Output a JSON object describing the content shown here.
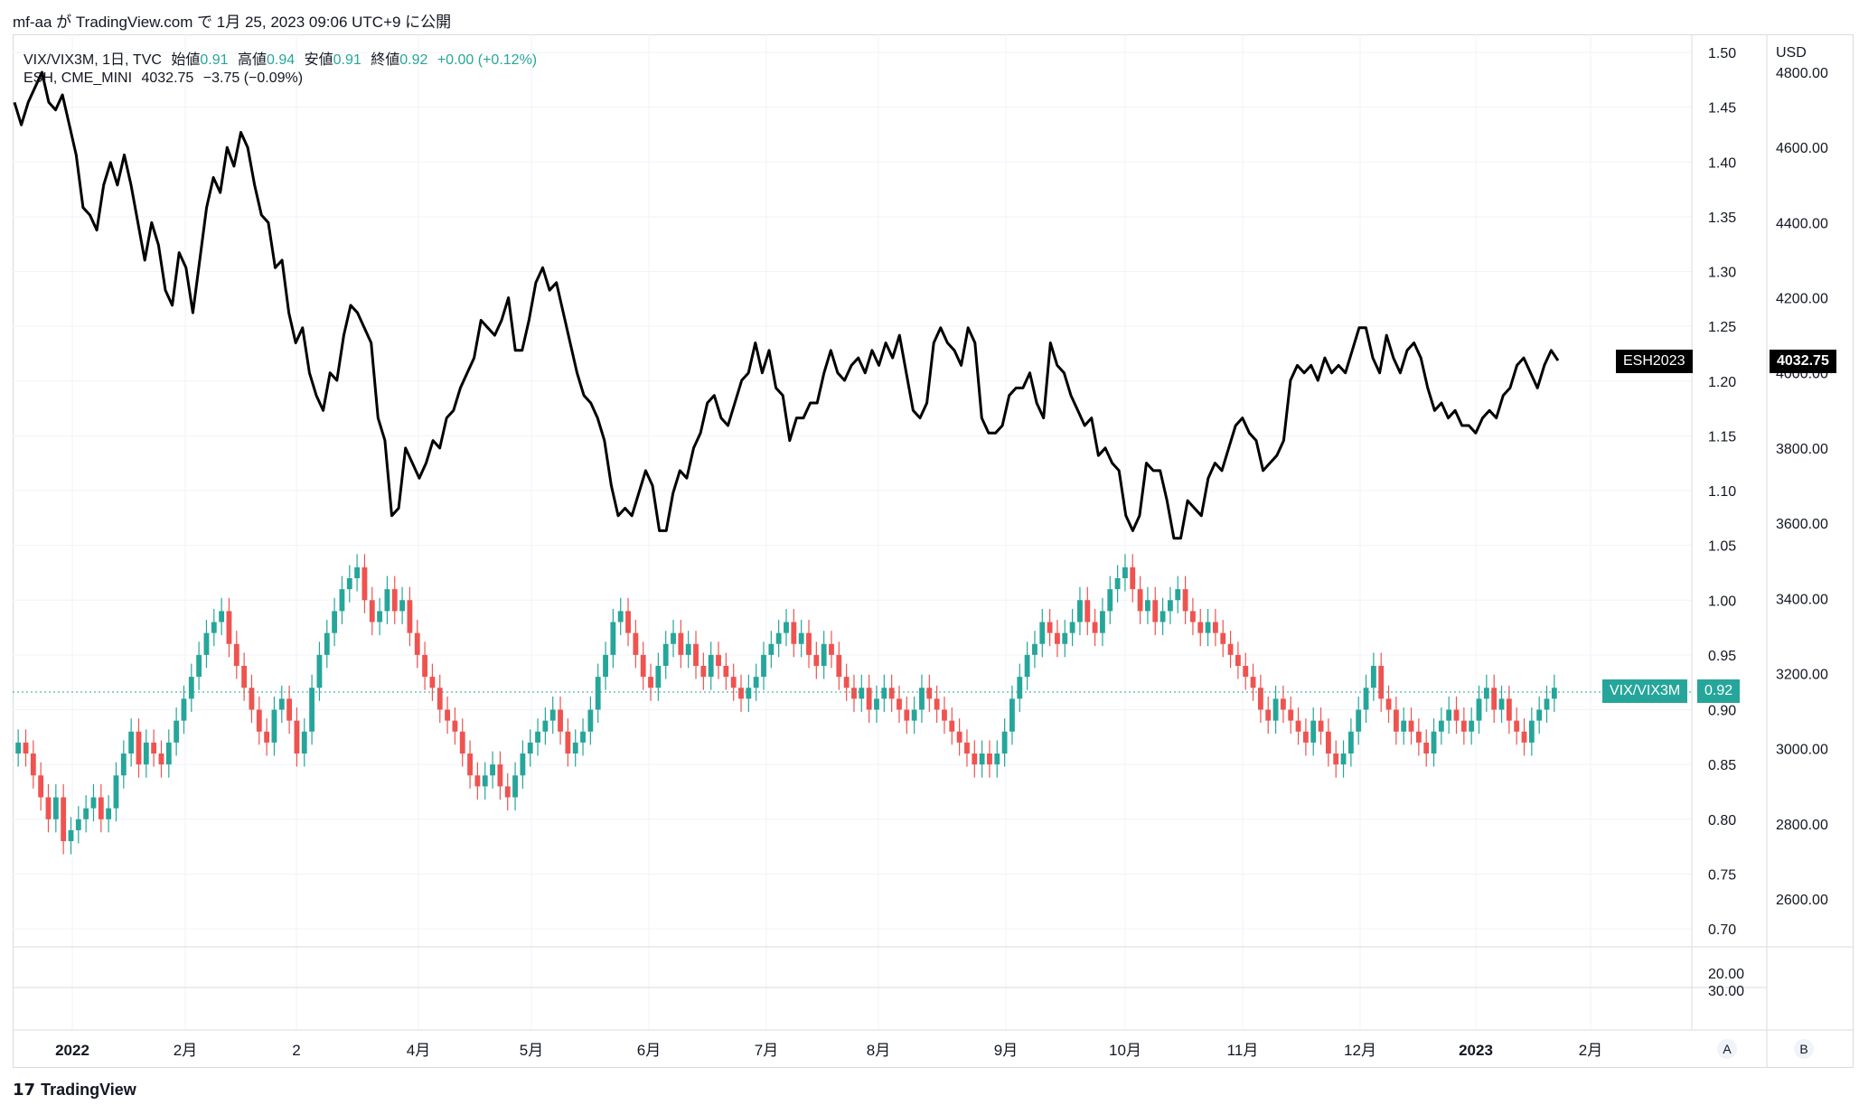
{
  "header": {
    "publish_line": "mf-aa が TradingView.com で 1月 25, 2023 09:06 UTC+9 に公開"
  },
  "legend": {
    "line1": {
      "symbol": "VIX/VIX3M, 1日, TVC",
      "open_label": "始値",
      "open": "0.91",
      "high_label": "高値",
      "high": "0.94",
      "low_label": "安値",
      "low": "0.91",
      "close_label": "終値",
      "close": "0.92",
      "change": "+0.00 (+0.12%)"
    },
    "line2": {
      "symbol": "ESH, CME_MINI",
      "value": "4032.75",
      "change": "−3.75 (−0.09%)"
    }
  },
  "axes": {
    "currency": "USD",
    "left_ticks": [
      "1.50",
      "1.45",
      "1.40",
      "1.35",
      "1.30",
      "1.25",
      "1.20",
      "1.15",
      "1.10",
      "1.05",
      "1.00",
      "0.95",
      "0.90",
      "0.85",
      "0.80",
      "0.75",
      "0.70"
    ],
    "right_ticks": [
      "4800.00",
      "4600.00",
      "4400.00",
      "4200.00",
      "4000.00",
      "3800.00",
      "3600.00",
      "3400.00",
      "3200.00",
      "3000.00",
      "2800.00",
      "2600.00"
    ],
    "lower_ticks": [
      "20.00",
      "30.00"
    ],
    "time_ticks": [
      "2022",
      "2月",
      "2",
      "4月",
      "5月",
      "6月",
      "7月",
      "8月",
      "9月",
      "10月",
      "11月",
      "12月",
      "2023",
      "2月"
    ]
  },
  "price_tags": {
    "es_name": "ESH2023",
    "es_value": "4032.75",
    "vix_name": "VIX/VIX3M",
    "vix_value": "0.92"
  },
  "buttons": {
    "a": "A",
    "b": "B"
  },
  "footer": {
    "brand": "TradingView",
    "logo": "17"
  },
  "colors": {
    "up": "#26a69a",
    "down": "#ef5350",
    "line": "#000000",
    "grid": "#f0f3fa"
  },
  "chart_data": [
    {
      "type": "line",
      "series": [
        {
          "name": "ESH2023",
          "values": [
            4720,
            4660,
            4720,
            4760,
            4800,
            4720,
            4700,
            4740,
            4660,
            4580,
            4440,
            4420,
            4380,
            4500,
            4560,
            4500,
            4580,
            4500,
            4400,
            4300,
            4400,
            4340,
            4220,
            4180,
            4320,
            4280,
            4160,
            4300,
            4440,
            4520,
            4480,
            4600,
            4550,
            4640,
            4600,
            4500,
            4420,
            4400,
            4280,
            4300,
            4160,
            4080,
            4120,
            4000,
            3940,
            3900,
            4000,
            3980,
            4100,
            4180,
            4160,
            4120,
            4080,
            3880,
            3820,
            3620,
            3640,
            3800,
            3760,
            3720,
            3760,
            3820,
            3800,
            3880,
            3900,
            3960,
            4000,
            4040,
            4140,
            4120,
            4100,
            4140,
            4200,
            4060,
            4060,
            4140,
            4240,
            4280,
            4220,
            4240,
            4160,
            4080,
            4000,
            3940,
            3920,
            3880,
            3820,
            3700,
            3620,
            3640,
            3620,
            3680,
            3740,
            3700,
            3580,
            3580,
            3680,
            3740,
            3720,
            3800,
            3840,
            3920,
            3940,
            3880,
            3860,
            3920,
            3980,
            4000,
            4080,
            4000,
            4060,
            3960,
            3940,
            3820,
            3880,
            3880,
            3920,
            3920,
            4000,
            4060,
            4000,
            3980,
            4020,
            4040,
            4000,
            4060,
            4020,
            4080,
            4040,
            4100,
            4000,
            3900,
            3880,
            3920,
            4080,
            4120,
            4080,
            4060,
            4020,
            4120,
            4080,
            3880,
            3840,
            3840,
            3860,
            3940,
            3960,
            3960,
            4000,
            3920,
            3880,
            4080,
            4020,
            4000,
            3940,
            3900,
            3860,
            3880,
            3780,
            3800,
            3760,
            3740,
            3620,
            3580,
            3620,
            3760,
            3740,
            3740,
            3660,
            3560,
            3560,
            3660,
            3640,
            3620,
            3720,
            3760,
            3740,
            3800,
            3860,
            3880,
            3840,
            3820,
            3740,
            3760,
            3780,
            3820,
            3980,
            4020,
            4000,
            4020,
            3980,
            4040,
            4000,
            4020,
            4000,
            4060,
            4120,
            4120,
            4040,
            4000,
            4100,
            4040,
            4000,
            4060,
            4080,
            4040,
            3960,
            3900,
            3920,
            3880,
            3900,
            3860,
            3860,
            3840,
            3880,
            3900,
            3880,
            3940,
            3960,
            4020,
            4040,
            4000,
            3960,
            4020,
            4060,
            4032.75
          ]
        }
      ],
      "y_unit": "USD",
      "ylim": [
        2400,
        4850
      ],
      "x_range": [
        "2022-01-03",
        "2023-01-24"
      ]
    },
    {
      "type": "candlestick",
      "series": [
        {
          "name": "VIX/VIX3M",
          "close": [
            0.87,
            0.86,
            0.84,
            0.82,
            0.8,
            0.82,
            0.78,
            0.79,
            0.8,
            0.81,
            0.82,
            0.8,
            0.81,
            0.84,
            0.86,
            0.88,
            0.85,
            0.87,
            0.86,
            0.85,
            0.87,
            0.89,
            0.91,
            0.93,
            0.95,
            0.97,
            0.98,
            0.99,
            0.96,
            0.94,
            0.92,
            0.9,
            0.88,
            0.87,
            0.9,
            0.91,
            0.89,
            0.86,
            0.88,
            0.92,
            0.95,
            0.97,
            0.99,
            1.01,
            1.02,
            1.03,
            1.0,
            0.98,
            0.99,
            1.01,
            0.99,
            1.0,
            0.97,
            0.95,
            0.93,
            0.92,
            0.9,
            0.89,
            0.88,
            0.86,
            0.84,
            0.83,
            0.84,
            0.85,
            0.83,
            0.82,
            0.84,
            0.86,
            0.87,
            0.88,
            0.89,
            0.9,
            0.88,
            0.86,
            0.87,
            0.88,
            0.9,
            0.93,
            0.95,
            0.98,
            0.99,
            0.97,
            0.95,
            0.93,
            0.92,
            0.94,
            0.96,
            0.97,
            0.95,
            0.96,
            0.94,
            0.93,
            0.95,
            0.94,
            0.93,
            0.92,
            0.91,
            0.92,
            0.93,
            0.95,
            0.96,
            0.97,
            0.98,
            0.96,
            0.97,
            0.95,
            0.94,
            0.96,
            0.95,
            0.93,
            0.92,
            0.91,
            0.92,
            0.9,
            0.91,
            0.92,
            0.91,
            0.9,
            0.89,
            0.9,
            0.92,
            0.91,
            0.9,
            0.89,
            0.88,
            0.87,
            0.86,
            0.85,
            0.86,
            0.85,
            0.86,
            0.88,
            0.91,
            0.93,
            0.95,
            0.96,
            0.98,
            0.97,
            0.96,
            0.97,
            0.98,
            1.0,
            0.98,
            0.97,
            0.99,
            1.01,
            1.02,
            1.03,
            1.01,
            0.99,
            1.0,
            0.98,
            0.99,
            1.0,
            1.01,
            0.99,
            0.98,
            0.97,
            0.98,
            0.97,
            0.96,
            0.95,
            0.94,
            0.93,
            0.92,
            0.9,
            0.89,
            0.91,
            0.9,
            0.89,
            0.88,
            0.87,
            0.89,
            0.88,
            0.86,
            0.85,
            0.86,
            0.88,
            0.9,
            0.92,
            0.94,
            0.91,
            0.9,
            0.88,
            0.89,
            0.88,
            0.87,
            0.86,
            0.88,
            0.89,
            0.9,
            0.89,
            0.88,
            0.89,
            0.91,
            0.92,
            0.9,
            0.91,
            0.89,
            0.88,
            0.87,
            0.89,
            0.9,
            0.91,
            0.92
          ]
        }
      ],
      "ylim": [
        0.65,
        1.52
      ]
    }
  ]
}
